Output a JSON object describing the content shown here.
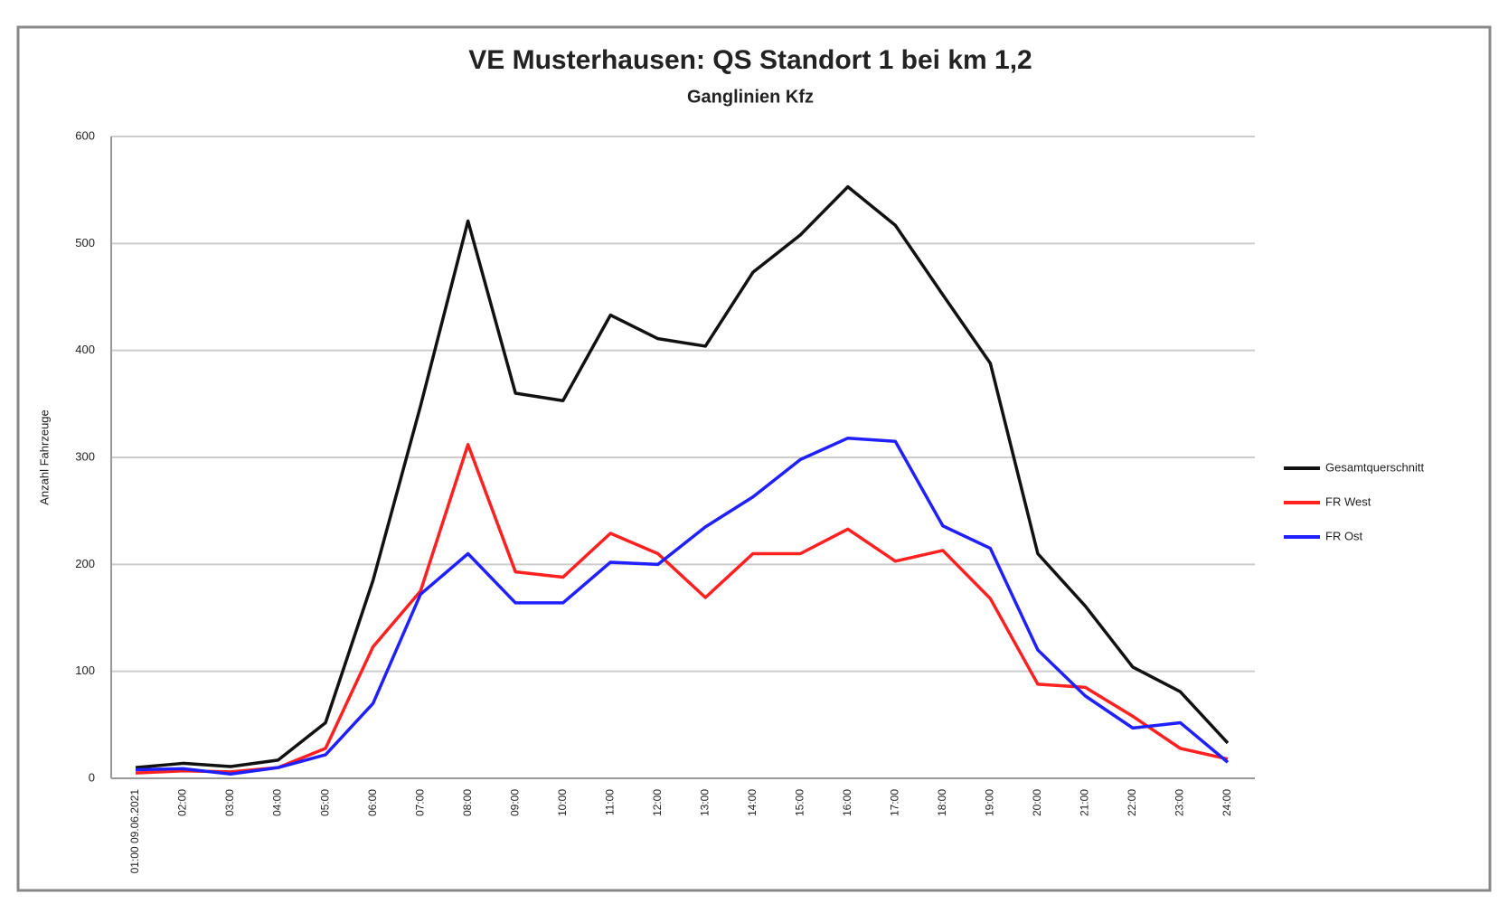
{
  "chart_data": {
    "type": "line",
    "title": "VE Musterhausen: QS Standort 1 bei km 1,2",
    "subtitle": "Ganglinien Kfz",
    "y_label": "Anzahl Fahrzeuge",
    "categories": [
      "01:00 09.06.2021",
      "02:00",
      "03:00",
      "04:00",
      "05:00",
      "06:00",
      "07:00",
      "08:00",
      "09:00",
      "10:00",
      "11:00",
      "12:00",
      "13:00",
      "14:00",
      "15:00",
      "16:00",
      "17:00",
      "18:00",
      "19:00",
      "20:00",
      "21:00",
      "22:00",
      "23:00",
      "24:00"
    ],
    "series": [
      {
        "name": "Gesamtquerschnitt",
        "color": "#111111",
        "values": [
          10,
          14,
          11,
          17,
          52,
          185,
          348,
          521,
          360,
          353,
          433,
          411,
          404,
          473,
          508,
          553,
          517,
          452,
          388,
          210,
          161,
          104,
          81,
          33
        ]
      },
      {
        "name": "FR West",
        "color": "#ff2020",
        "values": [
          5,
          7,
          6,
          10,
          28,
          123,
          175,
          312,
          193,
          188,
          229,
          210,
          169,
          210,
          210,
          233,
          203,
          213,
          168,
          88,
          85,
          58,
          28,
          18
        ]
      },
      {
        "name": "FR Ost",
        "color": "#2020ff",
        "values": [
          8,
          9,
          4,
          10,
          22,
          70,
          172,
          210,
          164,
          164,
          202,
          200,
          235,
          263,
          298,
          318,
          315,
          236,
          215,
          120,
          77,
          47,
          52,
          15
        ]
      }
    ],
    "ylim": [
      0,
      600
    ],
    "yticks": [
      0,
      100,
      200,
      300,
      400,
      500,
      600
    ],
    "grid": true,
    "legend": "right"
  }
}
